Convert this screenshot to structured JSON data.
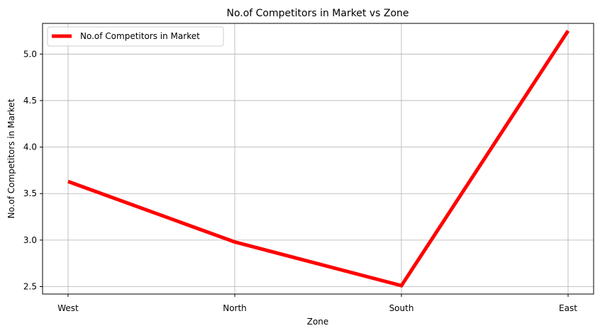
{
  "chart_data": {
    "type": "line",
    "title": "No.of Competitors in Market vs Zone",
    "xlabel": "Zone",
    "ylabel": "No.of Competitors in Market",
    "categories": [
      "West",
      "North",
      "South",
      "East"
    ],
    "series": [
      {
        "name": "No.of Competitors in Market",
        "values": [
          3.63,
          2.98,
          2.51,
          5.25
        ],
        "color": "#ff0000"
      }
    ],
    "ylim": [
      2.42,
      5.33
    ],
    "yticks": [
      2.5,
      3.0,
      3.5,
      4.0,
      4.5,
      5.0
    ],
    "ytick_labels": [
      "2.5",
      "3.0",
      "3.5",
      "4.0",
      "4.5",
      "5.0"
    ],
    "grid": true,
    "legend_position": "top-left",
    "colors": {
      "grid": "#b0b0b0",
      "axis": "#000000"
    }
  }
}
